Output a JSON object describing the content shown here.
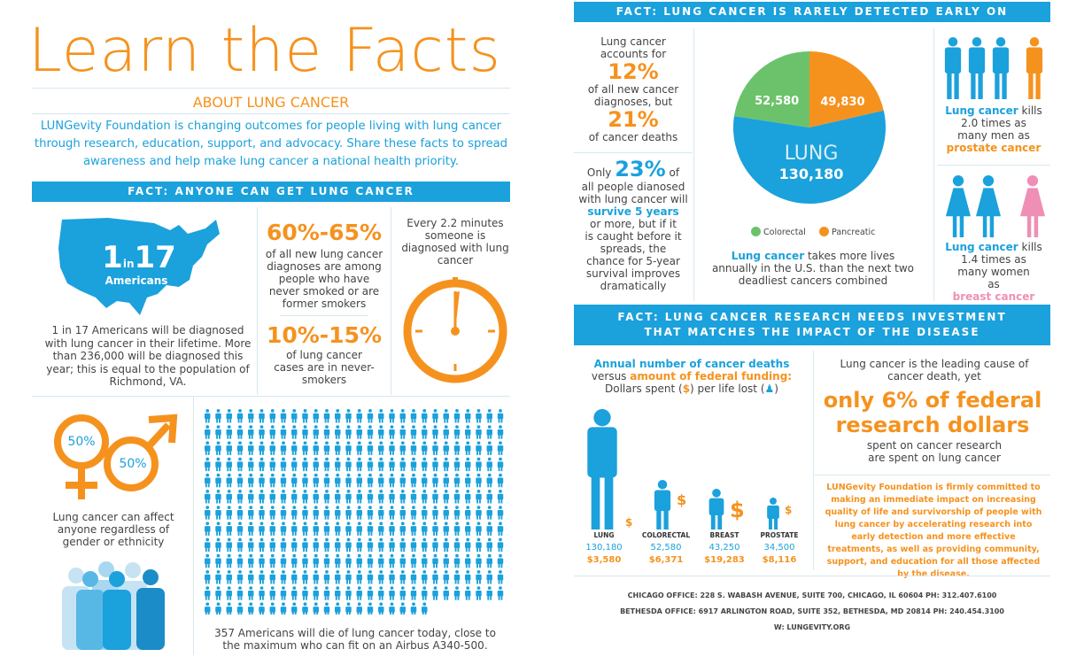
{
  "header": {
    "title": "Learn the Facts",
    "subtitle": "ABOUT LUNG CANCER",
    "intro": "LUNGevity Foundation is changing outcomes for people living with lung cancer through research, education, support, and advocacy. Share these facts to spread awareness and help make lung cancer a national health priority."
  },
  "fact1": {
    "bar": "FACT: ANYONE CAN GET LUNG CANCER",
    "map_num_1": "1",
    "map_in": "in",
    "map_num_17": "17",
    "map_label": "Americans",
    "map_text": "1 in 17 Americans will be diagnosed with lung cancer in their lifetime. More than 236,000 will be diagnosed this year; this is equal to the population of Richmond, VA.",
    "stat1_value": "60%-65%",
    "stat1_text": "of all new lung cancer diagnoses are among people who have never smoked or are former smokers",
    "stat2_value": "10%-15%",
    "stat2_text": "of lung cancer cases are in never-smokers",
    "clock_text": "Every 2.2 minutes someone is diagnosed with lung cancer",
    "female_pct": "50%",
    "male_pct": "50%",
    "gender_text": "Lung cancer can affect anyone regardless of gender or ethnicity",
    "people_text": "357 Americans will die of lung cancer today, close to the maximum who can fit on an Airbus A340-500.",
    "people_count": 357
  },
  "fact2": {
    "bar": "FACT: LUNG CANCER IS RARELY DETECTED EARLY ON",
    "a_line1": "Lung cancer accounts for",
    "a_pct1": "12%",
    "a_line2": "of all new cancer diagnoses, but",
    "a_pct2": "21%",
    "a_line3": "of cancer deaths",
    "b_only": "Only",
    "b_pct": "23%",
    "b_of": "of",
    "b_line1": "all people dianosed with lung cancer will",
    "b_survive": "survive 5 years",
    "b_line2": "or more, but if it is caught before it spreads, the chance for 5-year survival improves dramatically",
    "pie_lung_label": "LUNG",
    "legend_colorectal": "Colorectal",
    "legend_pancreatic": "Pancreatic",
    "pie_text_lead": "Lung cancer",
    "pie_text_rest": "takes more lives annually in the U.S. than the next two deadliest cancers combined",
    "men_lead": "Lung cancer",
    "men_kills": "kills",
    "men_times": "2.0 times as many men as",
    "men_prostate": "prostate cancer",
    "women_lead": "Lung cancer",
    "women_kills": "kills",
    "women_times": "1.4 times as many women as",
    "women_breast": "breast cancer"
  },
  "chart_data": {
    "type": "pie",
    "categories": [
      "LUNG",
      "Colorectal",
      "Pancreatic"
    ],
    "values": [
      130180,
      52580,
      49830
    ],
    "value_labels": [
      "130,180",
      "52,580",
      "49,830"
    ],
    "colors": [
      "#1ba1dc",
      "#6cc26b",
      "#f5921e"
    ]
  },
  "fact3": {
    "bar_line1": "FACT: LUNG CANCER RESEARCH NEEDS INVESTMENT",
    "bar_line2": "THAT MATCHES THE IMPACT OF THE DISEASE",
    "left_line1": "Annual number of cancer deaths",
    "left_versus": "versus",
    "left_amount": "amount of federal funding:",
    "left_line3": "Dollars spent (",
    "left_dollar": "$",
    "left_mid": ") per life lost (",
    "left_end": ")",
    "cancers": [
      {
        "name": "LUNG",
        "deaths": "130,180",
        "dollars": "$3,580"
      },
      {
        "name": "COLORECTAL",
        "deaths": "52,580",
        "dollars": "$6,371"
      },
      {
        "name": "BREAST",
        "deaths": "43,250",
        "dollars": "$19,283"
      },
      {
        "name": "PROSTATE",
        "deaths": "34,500",
        "dollars": "$8,116"
      }
    ],
    "right_line1": "Lung cancer is the leading cause of cancer death, yet",
    "right_big": "only 6% of federal research dollars",
    "right_line2": "spent on cancer research are spent on lung cancer",
    "commitment": "LUNGevity Foundation is firmly committed to making an immediate impact on increasing quality of life and survivorship of people with lung cancer by accelerating research into early detection and more effective treatments, as well as providing community, support, and education for all those affected by the disease."
  },
  "footer": {
    "chicago": "CHICAGO OFFICE: 228 S. WABASH AVENUE, SUITE 700, CHICAGO, IL 60604  PH: 312.407.6100",
    "bethesda": "BETHESDA OFFICE: 6917 ARLINGTON ROAD, SUITE 352, BETHESDA, MD 20814 PH: 240.454.3100",
    "web": "W: LUNGEVITY.ORG"
  }
}
